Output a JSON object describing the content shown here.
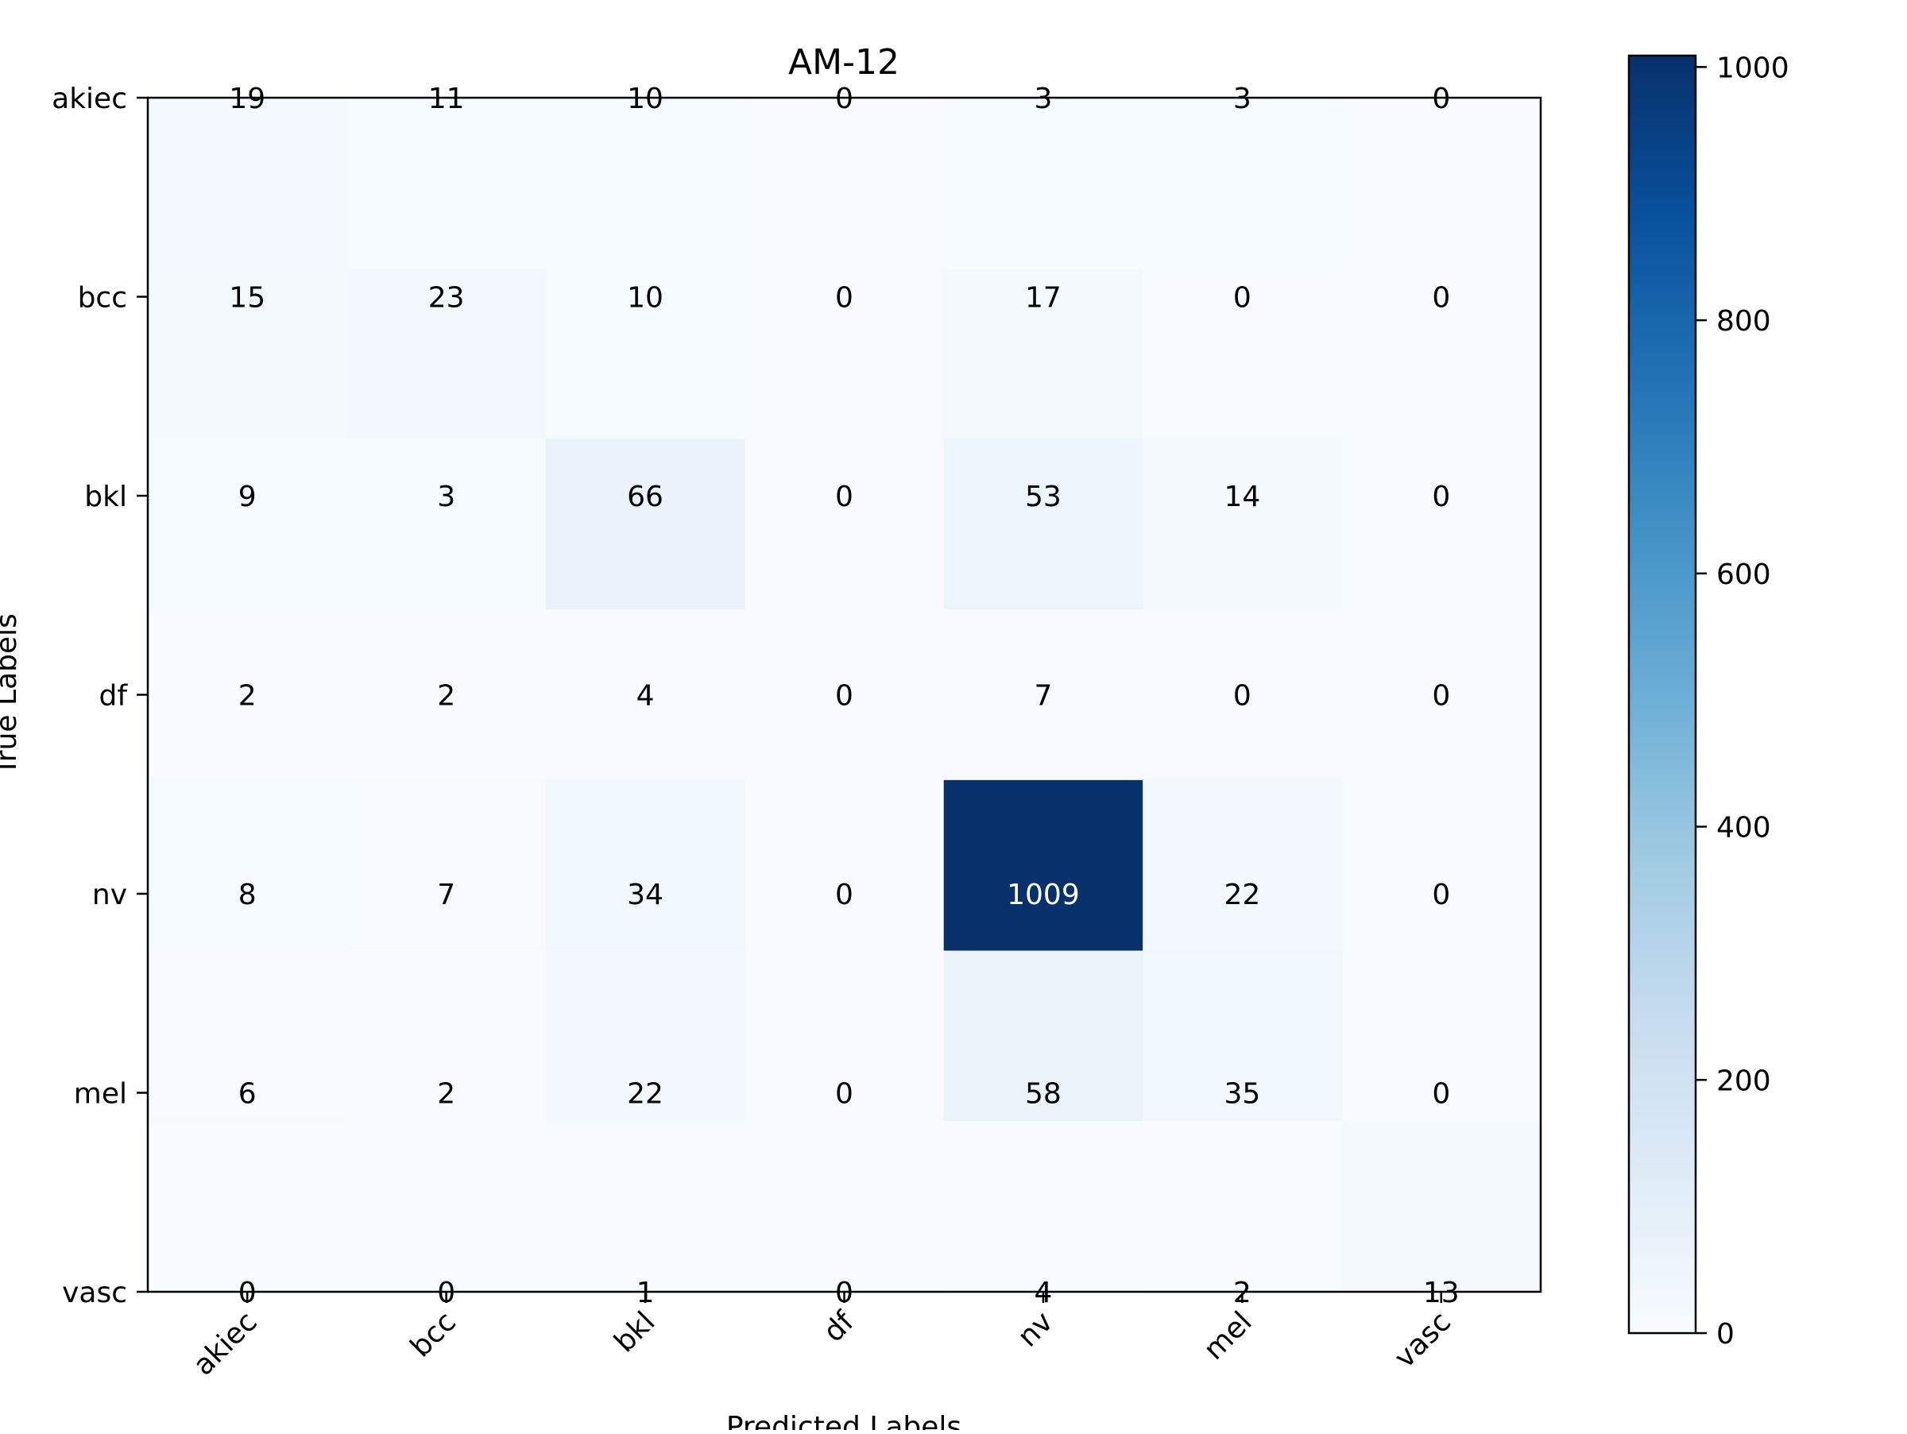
{
  "chart_data": {
    "type": "heatmap",
    "title": "AM-12",
    "xlabel": "Predicted Labels",
    "ylabel": "True Labels",
    "x_categories": [
      "akiec",
      "bcc",
      "bkl",
      "df",
      "nv",
      "mel",
      "vasc"
    ],
    "y_categories": [
      "akiec",
      "bcc",
      "bkl",
      "df",
      "nv",
      "mel",
      "vasc"
    ],
    "values": [
      [
        19,
        11,
        10,
        0,
        3,
        3,
        0
      ],
      [
        15,
        23,
        10,
        0,
        17,
        0,
        0
      ],
      [
        9,
        3,
        66,
        0,
        53,
        14,
        0
      ],
      [
        2,
        2,
        4,
        0,
        7,
        0,
        0
      ],
      [
        8,
        7,
        34,
        0,
        1009,
        22,
        0
      ],
      [
        6,
        2,
        22,
        0,
        58,
        35,
        0
      ],
      [
        0,
        0,
        1,
        0,
        4,
        2,
        13
      ]
    ],
    "colormap": "Blues",
    "colorbar": {
      "range": [
        0,
        1009
      ],
      "ticks": [
        0,
        200,
        400,
        600,
        800,
        1000
      ]
    },
    "grid": false,
    "x_tick_rotation_deg": 45
  }
}
